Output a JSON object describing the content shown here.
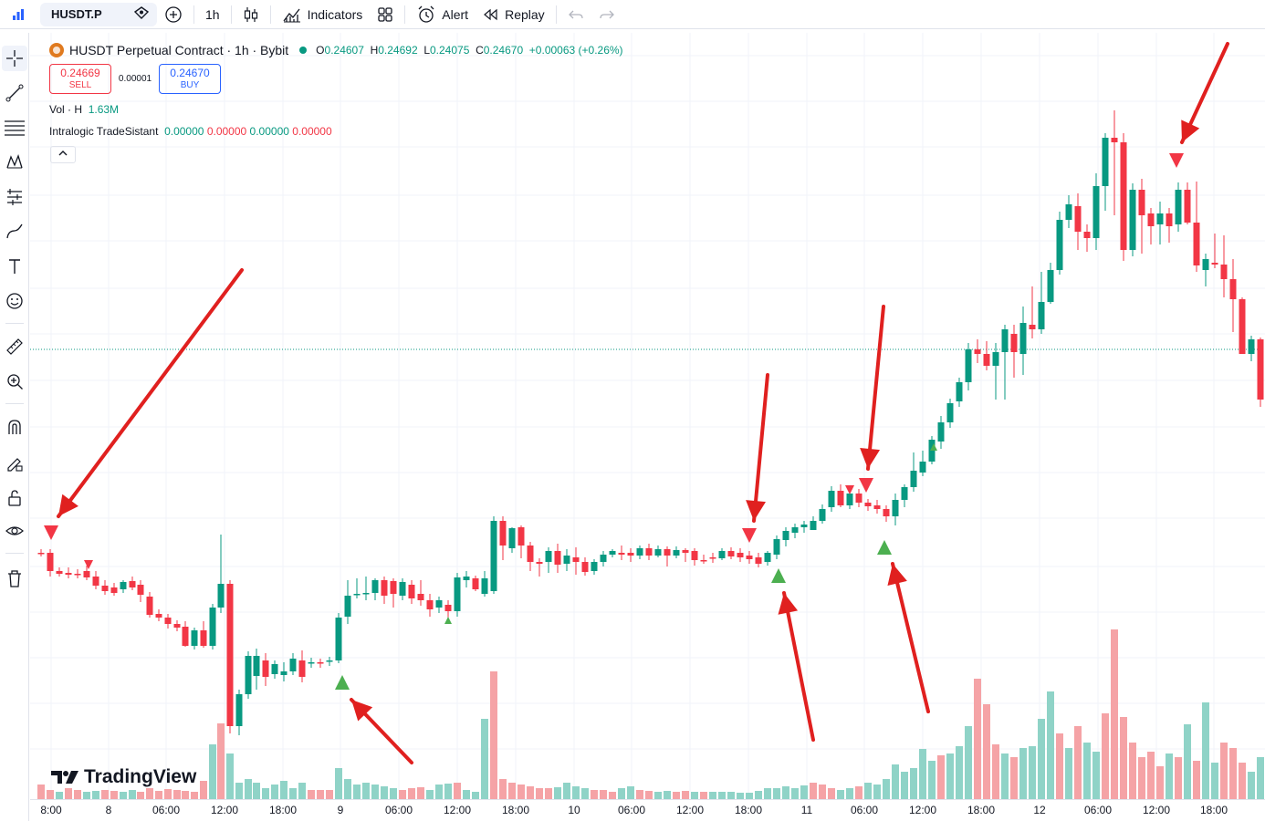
{
  "topbar": {
    "symbol": "HUSDT.P",
    "interval": "1h",
    "indicators_label": "Indicators",
    "alert_label": "Alert",
    "replay_label": "Replay"
  },
  "legend": {
    "title": "HUSDT Perpetual Contract · 1h · Bybit",
    "o_label": "O",
    "o": "0.24607",
    "h_label": "H",
    "h": "0.24692",
    "l_label": "L",
    "l": "0.24075",
    "c_label": "C",
    "c": "0.24670",
    "change": "+0.00063 (+0.26%)"
  },
  "trade": {
    "sell_price": "0.24669",
    "sell_label": "SELL",
    "spread": "0.00001",
    "buy_price": "0.24670",
    "buy_label": "BUY"
  },
  "volume": {
    "label": "Vol · H",
    "value": "1.63M"
  },
  "indicator": {
    "name": "Intralogic TradeSistant",
    "v1": "0.00000",
    "v2": "0.00000",
    "v3": "0.00000",
    "v4": "0.00000"
  },
  "branding": "TradingView",
  "time_axis": [
    "8:00",
    "8",
    "06:00",
    "12:00",
    "18:00",
    "9",
    "06:00",
    "12:00",
    "18:00",
    "10",
    "06:00",
    "12:00",
    "18:00",
    "11",
    "06:00",
    "12:00",
    "18:00",
    "12",
    "06:00",
    "12:00",
    "18:00"
  ],
  "colors": {
    "up": "#089981",
    "down": "#f23645",
    "vol_up": "#8fd3c7",
    "vol_down": "#f5a3a6",
    "arrow": "#e0201f",
    "signal_up": "#4caf50"
  }
}
